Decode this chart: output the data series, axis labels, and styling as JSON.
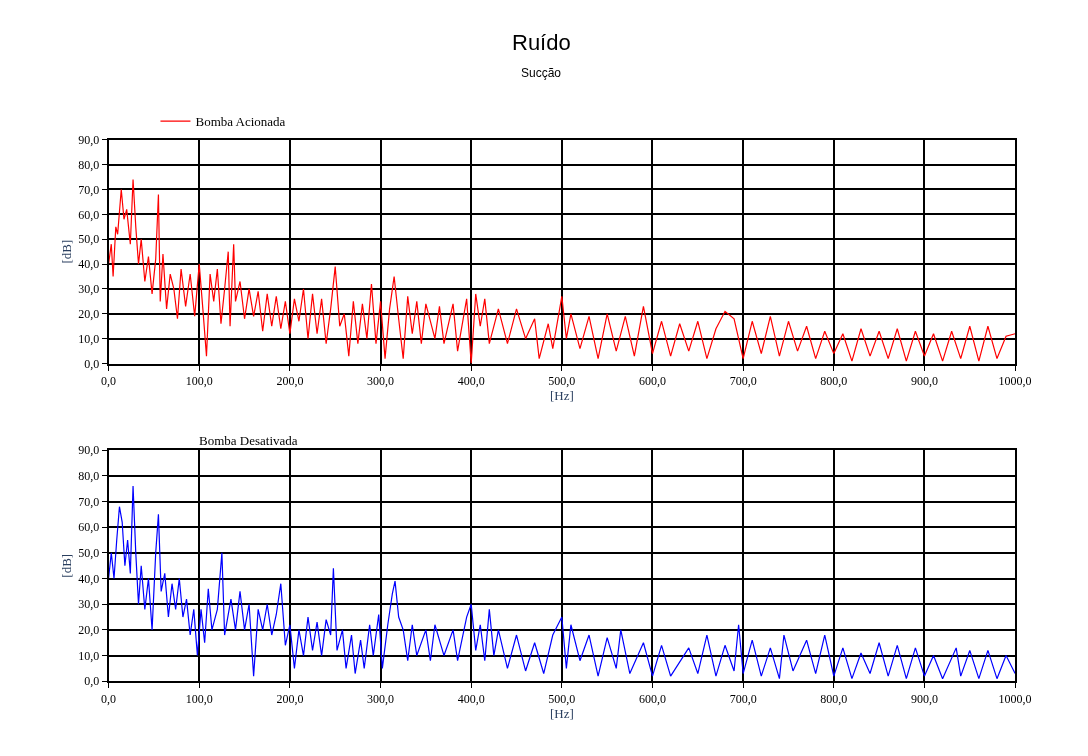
{
  "chart_data": [
    {
      "type": "line",
      "title": "Ruído",
      "subtitle": "Sucção",
      "xlabel": "[Hz]",
      "ylabel": "[dB]",
      "grid": true,
      "legend": "top left",
      "xlim": [
        0,
        1000
      ],
      "ylim": [
        0,
        90
      ],
      "xticks": [
        {
          "value": 0,
          "label": "0,0"
        },
        {
          "value": 100,
          "label": "100,0"
        },
        {
          "value": 200,
          "label": "200,0"
        },
        {
          "value": 300,
          "label": "300,0"
        },
        {
          "value": 400,
          "label": "400,0"
        },
        {
          "value": 500,
          "label": "500,0"
        },
        {
          "value": 600,
          "label": "600,0"
        },
        {
          "value": 700,
          "label": "700,0"
        },
        {
          "value": 800,
          "label": "800,0"
        },
        {
          "value": 900,
          "label": "900,0"
        },
        {
          "value": 1000,
          "label": "1000,0"
        }
      ],
      "yticks": [
        {
          "value": 0,
          "label": "0,0"
        },
        {
          "value": 10,
          "label": "10,0"
        },
        {
          "value": 20,
          "label": "20,0"
        },
        {
          "value": 30,
          "label": "30,0"
        },
        {
          "value": 40,
          "label": "40,0"
        },
        {
          "value": 50,
          "label": "50,0"
        },
        {
          "value": 60,
          "label": "60,0"
        },
        {
          "value": 70,
          "label": "70,0"
        },
        {
          "value": 80,
          "label": "80,0"
        },
        {
          "value": 90,
          "label": "90,0"
        }
      ],
      "series": [
        {
          "name": "Bomba Acionada",
          "color": "#ff0000",
          "x": [
            0,
            3,
            5,
            8,
            10,
            14,
            17,
            20,
            24,
            27,
            30,
            33,
            36,
            40,
            44,
            48,
            52,
            55,
            57,
            60,
            64,
            68,
            72,
            76,
            80,
            85,
            90,
            95,
            100,
            104,
            108,
            112,
            116,
            120,
            124,
            128,
            132,
            134,
            138,
            140,
            145,
            150,
            155,
            160,
            165,
            170,
            175,
            180,
            185,
            190,
            195,
            200,
            205,
            210,
            215,
            220,
            225,
            230,
            235,
            240,
            245,
            250,
            255,
            260,
            265,
            270,
            275,
            280,
            285,
            290,
            295,
            300,
            305,
            310,
            315,
            320,
            325,
            330,
            335,
            340,
            345,
            350,
            360,
            365,
            370,
            380,
            385,
            395,
            400,
            405,
            410,
            415,
            420,
            430,
            440,
            450,
            460,
            470,
            475,
            485,
            490,
            500,
            505,
            510,
            520,
            530,
            540,
            550,
            560,
            570,
            580,
            590,
            600,
            610,
            620,
            630,
            640,
            650,
            660,
            670,
            680,
            690,
            700,
            710,
            720,
            730,
            740,
            750,
            760,
            770,
            780,
            790,
            800,
            810,
            820,
            830,
            840,
            850,
            860,
            870,
            880,
            890,
            900,
            910,
            920,
            930,
            940,
            950,
            960,
            970,
            980,
            990,
            1000
          ],
          "values": [
            40,
            48,
            35,
            55,
            52,
            70,
            58,
            62,
            48,
            74,
            55,
            40,
            50,
            33,
            43,
            28,
            42,
            68,
            25,
            44,
            22,
            36,
            30,
            18,
            38,
            23,
            36,
            19,
            40,
            22,
            3,
            36,
            25,
            38,
            16,
            30,
            45,
            15,
            48,
            25,
            33,
            18,
            30,
            19,
            29,
            13,
            28,
            15,
            27,
            14,
            25,
            12,
            26,
            17,
            30,
            10,
            28,
            12,
            26,
            8,
            22,
            39,
            15,
            20,
            3,
            25,
            8,
            24,
            10,
            32,
            8,
            25,
            2,
            22,
            35,
            18,
            2,
            27,
            12,
            25,
            8,
            24,
            10,
            23,
            8,
            24,
            5,
            26,
            0,
            28,
            15,
            26,
            8,
            22,
            8,
            22,
            10,
            18,
            2,
            16,
            6,
            27,
            10,
            20,
            6,
            19,
            2,
            20,
            5,
            19,
            3,
            23,
            4,
            17,
            3,
            16,
            5,
            17,
            2,
            14,
            21,
            18,
            2,
            17,
            4,
            19,
            3,
            17,
            5,
            15,
            2,
            13,
            4,
            12,
            1,
            14,
            3,
            13,
            2,
            14,
            1,
            13,
            3,
            12,
            1,
            13,
            2,
            15,
            1,
            15,
            2,
            11,
            12
          ]
        }
      ]
    },
    {
      "type": "line",
      "title": "Bomba Desativada",
      "xlabel": "[Hz]",
      "ylabel": "[dB]",
      "grid": true,
      "xlim": [
        0,
        1000
      ],
      "ylim": [
        0,
        90
      ],
      "xticks": [
        {
          "value": 0,
          "label": "0,0"
        },
        {
          "value": 100,
          "label": "100,0"
        },
        {
          "value": 200,
          "label": "200,0"
        },
        {
          "value": 300,
          "label": "300,0"
        },
        {
          "value": 400,
          "label": "400,0"
        },
        {
          "value": 500,
          "label": "500,0"
        },
        {
          "value": 600,
          "label": "600,0"
        },
        {
          "value": 700,
          "label": "700,0"
        },
        {
          "value": 800,
          "label": "800,0"
        },
        {
          "value": 900,
          "label": "900,0"
        },
        {
          "value": 1000,
          "label": "1000,0"
        }
      ],
      "yticks": [
        {
          "value": 0,
          "label": "0,0"
        },
        {
          "value": 10,
          "label": "10,0"
        },
        {
          "value": 20,
          "label": "20,0"
        },
        {
          "value": 30,
          "label": "30,0"
        },
        {
          "value": 40,
          "label": "40,0"
        },
        {
          "value": 50,
          "label": "50,0"
        },
        {
          "value": 60,
          "label": "60,0"
        },
        {
          "value": 70,
          "label": "70,0"
        },
        {
          "value": 80,
          "label": "80,0"
        },
        {
          "value": 90,
          "label": "90,0"
        }
      ],
      "series": [
        {
          "color": "#0000ff",
          "x": [
            0,
            3,
            6,
            9,
            12,
            15,
            18,
            21,
            24,
            27,
            30,
            33,
            36,
            40,
            44,
            48,
            52,
            55,
            58,
            62,
            66,
            70,
            74,
            78,
            82,
            86,
            90,
            94,
            98,
            102,
            106,
            110,
            114,
            120,
            125,
            128,
            135,
            140,
            145,
            150,
            155,
            160,
            165,
            170,
            175,
            180,
            185,
            190,
            195,
            200,
            205,
            210,
            215,
            220,
            225,
            230,
            235,
            240,
            245,
            248,
            252,
            258,
            262,
            268,
            272,
            278,
            282,
            288,
            292,
            298,
            302,
            308,
            313,
            316,
            320,
            325,
            330,
            335,
            340,
            350,
            355,
            360,
            370,
            380,
            385,
            395,
            400,
            405,
            410,
            415,
            420,
            425,
            430,
            440,
            450,
            460,
            470,
            480,
            490,
            500,
            505,
            510,
            520,
            530,
            540,
            550,
            560,
            565,
            575,
            590,
            600,
            610,
            620,
            640,
            650,
            660,
            670,
            680,
            690,
            695,
            700,
            710,
            720,
            730,
            740,
            745,
            755,
            770,
            780,
            790,
            800,
            810,
            820,
            830,
            840,
            850,
            860,
            870,
            880,
            890,
            900,
            910,
            920,
            935,
            940,
            950,
            960,
            970,
            980,
            990,
            1000
          ],
          "values": [
            40,
            50,
            40,
            55,
            68,
            62,
            45,
            55,
            42,
            76,
            50,
            30,
            45,
            28,
            40,
            20,
            50,
            65,
            35,
            42,
            25,
            38,
            28,
            40,
            25,
            32,
            18,
            28,
            10,
            28,
            15,
            36,
            20,
            28,
            50,
            18,
            32,
            20,
            35,
            20,
            30,
            2,
            28,
            20,
            30,
            18,
            26,
            38,
            14,
            22,
            5,
            20,
            10,
            25,
            12,
            23,
            10,
            24,
            18,
            44,
            12,
            20,
            5,
            18,
            3,
            16,
            5,
            22,
            10,
            26,
            5,
            22,
            34,
            39,
            25,
            20,
            8,
            22,
            10,
            20,
            8,
            22,
            10,
            20,
            8,
            25,
            30,
            12,
            22,
            8,
            28,
            10,
            20,
            5,
            18,
            4,
            15,
            3,
            18,
            25,
            5,
            22,
            8,
            18,
            2,
            17,
            5,
            20,
            3,
            15,
            2,
            14,
            2,
            13,
            3,
            18,
            2,
            14,
            4,
            22,
            3,
            16,
            2,
            13,
            1,
            18,
            4,
            16,
            3,
            18,
            2,
            13,
            1,
            11,
            3,
            15,
            2,
            14,
            1,
            13,
            2,
            10,
            1,
            13,
            2,
            12,
            1,
            12,
            1,
            10,
            3
          ]
        }
      ]
    }
  ]
}
